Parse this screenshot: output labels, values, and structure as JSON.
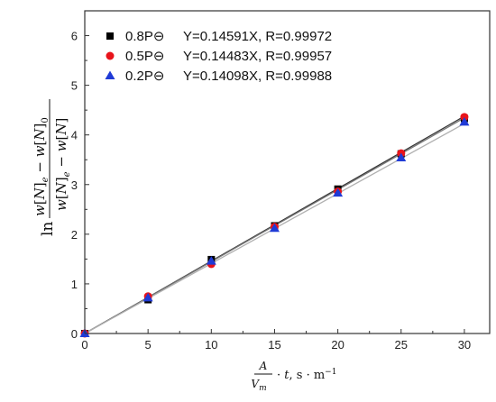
{
  "chart_data": {
    "type": "scatter",
    "x": [
      0,
      5,
      10,
      15,
      20,
      25,
      30
    ],
    "xlim": [
      0,
      32
    ],
    "ylim": [
      0,
      6.5
    ],
    "xticks": [
      "0",
      "5",
      "10",
      "15",
      "20",
      "25",
      "30"
    ],
    "yticks": [
      "0",
      "1",
      "2",
      "3",
      "4",
      "5",
      "6"
    ],
    "grid": false,
    "legend_position": "top-left",
    "series": [
      {
        "name": "0.8P⊖",
        "marker": "square",
        "color": "#000000",
        "values": [
          0,
          0.68,
          1.49,
          2.17,
          2.91,
          3.62,
          4.33
        ],
        "fit": "Y=0.14591X, R=0.99972",
        "slope": 0.14591
      },
      {
        "name": "0.5P⊖",
        "marker": "circle",
        "color": "#e8141b",
        "values": [
          0,
          0.75,
          1.4,
          2.15,
          2.86,
          3.63,
          4.36
        ],
        "fit": "Y=0.14483X, R=0.99957",
        "slope": 0.14483
      },
      {
        "name": "0.2P⊖",
        "marker": "triangle",
        "color": "#1f3ad6",
        "values": [
          0,
          0.72,
          1.46,
          2.12,
          2.83,
          3.54,
          4.26
        ],
        "fit": "Y=0.14098X, R=0.99988",
        "slope": 0.14098
      }
    ],
    "ylabel": {
      "prefix": "ln",
      "numerator": "w[N]e − w[N]0",
      "denominator": "w[N]e − w[N]"
    },
    "xlabel": {
      "numerator": "A",
      "denominator": "Vm",
      "rest": "· t, s · m−1"
    }
  }
}
